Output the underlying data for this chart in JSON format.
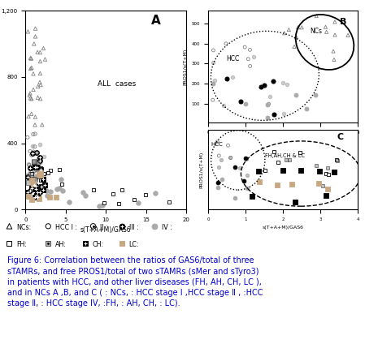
{
  "title_A": "A",
  "title_B": "B",
  "title_C": "C",
  "label_A": "ALL  cases",
  "label_B_HCC": "HCC",
  "label_B_NCs": "NCs",
  "label_C_HCC": "HCC",
  "label_C_FH": "FH,AH,CH & LC",
  "xlabel": "s(T+A+M)/GAS6",
  "ylabel": "PROS1/s(T+M)",
  "caption": "Figure 6: Correlation between the ratios of GAS6/total of three\nsTAMRs, and free PROS1/total of two sTAMRs (sMer and sTyro3)\nin patients with HCC, and other liver diseases (FH, AH, CH, LC ),\nand in NCs A ,B, and C ( : NCs, : HCC stage Ⅰ ,HCC stage Ⅱ , :HCC\nstage Ⅱ, : HCC stage IV, :FH, : AH, CH, : LC).",
  "caption_color": "#0000CC",
  "caption_fontsize": 7.0,
  "background": "white"
}
